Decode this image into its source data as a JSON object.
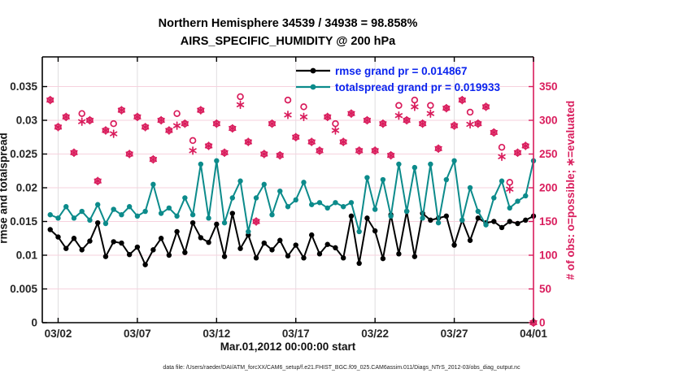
{
  "title": {
    "line1": "Northern Hemisphere 34539 / 34938 = 98.858%",
    "line2": "AIRS_SPECIFIC_HUMIDITY @ 200 hPa"
  },
  "legend": {
    "rmse_label": "rmse grand pr = 0.014867",
    "spread_label": "totalspread grand pr = 0.019933"
  },
  "axes": {
    "ylabel_left": "rmse and totalspread",
    "ylabel_right": "# of obs: o=possible; ∗=evaluated",
    "xlabel": "Mar.01,2012 00:00:00 start"
  },
  "footer": {
    "text": "data file: /Users/raeder/DAI/ATM_forcXX/CAM6_setup/f.e21.FHIST_BGC.f09_025.CAM6assim.011/Diags_NTrS_2012-03/obs_diag_output.nc"
  },
  "colors": {
    "rmse": "#000000",
    "spread": "#0c8b8b",
    "obs_pink": "#d91c5c",
    "legend_text": "#0b24ee",
    "tick_label": "#262626",
    "grid_vertical": "#e0dde0",
    "grid_horizontal": "#f6d2de",
    "spine_black": "#000000"
  },
  "chart_data": {
    "type": "line",
    "title": "Northern Hemisphere 34539 / 34938 = 98.858%",
    "subtitle": "AIRS_SPECIFIC_HUMIDITY @ 200 hPa",
    "xlabel": "Mar.01,2012 00:00:00 start",
    "ylabel_left": "rmse and totalspread",
    "ylabel_right": "# of obs: o=possible; ∗=evaluated",
    "grid": true,
    "legend_position": "top-center-inside",
    "xlim_days": [
      0,
      31
    ],
    "xticks_days": [
      1,
      6,
      11,
      16,
      21,
      26,
      31
    ],
    "xtick_labels": [
      "03/02",
      "03/07",
      "03/12",
      "03/17",
      "03/22",
      "03/27",
      "04/01"
    ],
    "ylim_left": [
      0,
      0.0394
    ],
    "yticks_left": [
      0,
      0.005,
      0.01,
      0.015,
      0.02,
      0.025,
      0.03,
      0.035
    ],
    "ytick_labels_left": [
      "0",
      "0.005",
      "0.01",
      "0.015",
      "0.02",
      "0.025",
      "0.03",
      "0.035"
    ],
    "ylim_right": [
      0,
      394
    ],
    "yticks_right": [
      0,
      50,
      100,
      150,
      200,
      250,
      300,
      350
    ],
    "ytick_labels_right": [
      "0",
      "50",
      "100",
      "150",
      "200",
      "250",
      "300",
      "350"
    ],
    "x_days": [
      0.5,
      1,
      1.5,
      2,
      2.5,
      3,
      3.5,
      4,
      4.5,
      5,
      5.5,
      6,
      6.5,
      7,
      7.5,
      8,
      8.5,
      9,
      9.5,
      10,
      10.5,
      11,
      11.5,
      12,
      12.5,
      13,
      13.5,
      14,
      14.5,
      15,
      15.5,
      16,
      16.5,
      17,
      17.5,
      18,
      18.5,
      19,
      19.5,
      20,
      20.5,
      21,
      21.5,
      22,
      22.5,
      23,
      23.5,
      24,
      24.5,
      25,
      25.5,
      26,
      26.5,
      27,
      27.5,
      28,
      28.5,
      29,
      29.5,
      30,
      30.5,
      31
    ],
    "series": [
      {
        "name": "rmse",
        "axis": "left",
        "color": "#000000",
        "marker": "filled-circle",
        "line": true,
        "values": [
          0.0138,
          0.0127,
          0.011,
          0.0125,
          0.0108,
          0.0121,
          0.0148,
          0.0098,
          0.012,
          0.0118,
          0.0101,
          0.0112,
          0.0086,
          0.0108,
          0.0125,
          0.01,
          0.0135,
          0.0104,
          0.0148,
          0.0126,
          0.0119,
          0.0146,
          0.0098,
          0.0162,
          0.011,
          0.013,
          0.0096,
          0.0118,
          0.0108,
          0.0122,
          0.0099,
          0.0115,
          0.0096,
          0.013,
          0.0102,
          0.0116,
          0.0111,
          0.0096,
          0.0158,
          0.0088,
          0.0155,
          0.0136,
          0.0095,
          0.016,
          0.0102,
          0.0165,
          0.0098,
          0.0162,
          0.0152,
          0.0155,
          0.0158,
          0.0115,
          0.0152,
          0.0122,
          0.0155,
          0.0148,
          0.015,
          0.0141,
          0.015,
          0.0147,
          0.0152,
          0.0158
        ]
      },
      {
        "name": "totalspread",
        "axis": "left",
        "color": "#0c8b8b",
        "marker": "filled-circle",
        "line": true,
        "values": [
          0.016,
          0.0155,
          0.0172,
          0.0155,
          0.0165,
          0.0152,
          0.0175,
          0.0147,
          0.0168,
          0.016,
          0.0172,
          0.0158,
          0.0165,
          0.0205,
          0.0162,
          0.017,
          0.0158,
          0.0185,
          0.016,
          0.0235,
          0.0155,
          0.024,
          0.0148,
          0.0185,
          0.021,
          0.0135,
          0.0185,
          0.0205,
          0.016,
          0.0195,
          0.0172,
          0.0182,
          0.0208,
          0.0175,
          0.0178,
          0.017,
          0.0178,
          0.0172,
          0.0178,
          0.0135,
          0.0215,
          0.0168,
          0.0212,
          0.0158,
          0.0235,
          0.0165,
          0.023,
          0.0155,
          0.0235,
          0.0148,
          0.0212,
          0.024,
          0.0152,
          0.02,
          0.0165,
          0.0145,
          0.0185,
          0.021,
          0.017,
          0.018,
          0.0188,
          0.024
        ]
      },
      {
        "name": "possible",
        "axis": "right",
        "color": "#d91c5c",
        "marker": "open-circle",
        "line": false,
        "values": [
          330,
          290,
          305,
          252,
          310,
          300,
          210,
          285,
          295,
          315,
          250,
          305,
          290,
          242,
          300,
          285,
          310,
          295,
          270,
          315,
          262,
          295,
          252,
          288,
          335,
          268,
          150,
          250,
          295,
          248,
          330,
          275,
          320,
          268,
          255,
          305,
          295,
          268,
          310,
          255,
          300,
          255,
          295,
          248,
          322,
          300,
          330,
          295,
          322,
          258,
          318,
          292,
          330,
          312,
          295,
          320,
          282,
          260,
          208,
          252,
          262,
          0
        ]
      },
      {
        "name": "evaluated",
        "axis": "right",
        "color": "#d91c5c",
        "marker": "asterisk",
        "line": false,
        "values": [
          330,
          290,
          305,
          252,
          298,
          300,
          210,
          285,
          280,
          315,
          250,
          305,
          290,
          242,
          300,
          285,
          292,
          295,
          255,
          315,
          262,
          295,
          252,
          288,
          323,
          268,
          150,
          250,
          295,
          248,
          308,
          275,
          305,
          268,
          255,
          305,
          285,
          268,
          310,
          255,
          300,
          255,
          295,
          248,
          307,
          300,
          320,
          295,
          310,
          258,
          318,
          292,
          330,
          294,
          295,
          320,
          282,
          246,
          198,
          252,
          262,
          0
        ]
      }
    ]
  }
}
